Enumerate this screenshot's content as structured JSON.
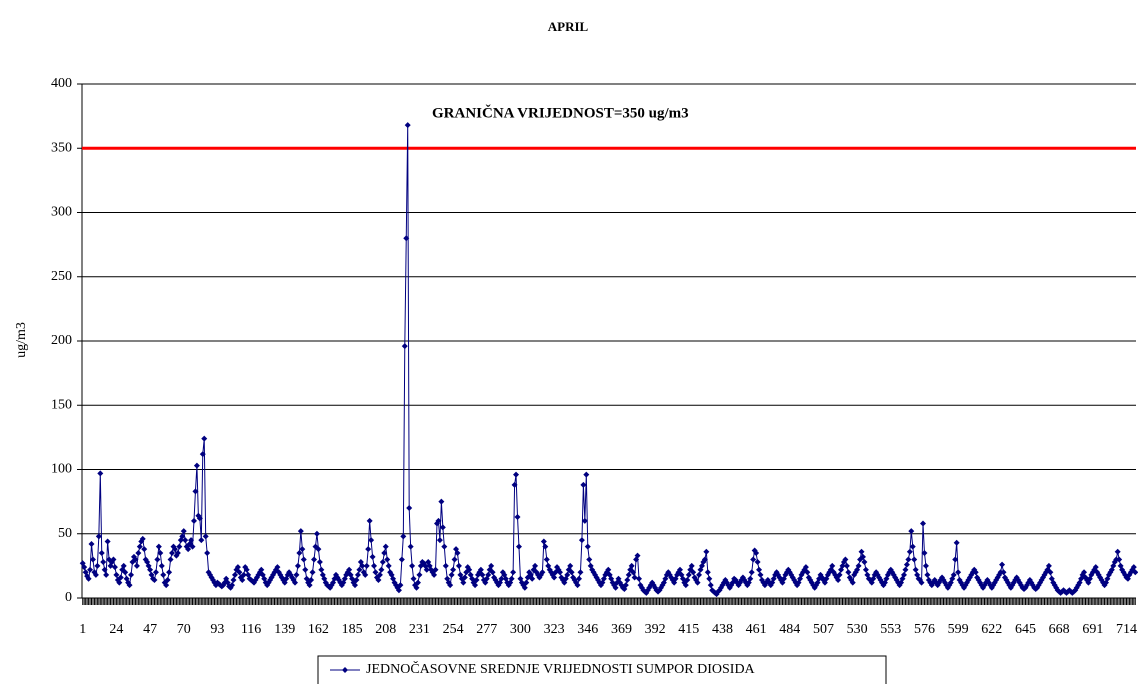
{
  "chart_data": {
    "type": "line",
    "title": "APRIL",
    "y_label": "ug/m3",
    "threshold": {
      "value": 350,
      "label": "GRANIČNA VRIJEDNOST=350 ug/m3",
      "color": "#ff0000"
    },
    "xlim": [
      0.5,
      720.5
    ],
    "xticks": [
      1,
      24,
      47,
      70,
      93,
      116,
      139,
      162,
      185,
      208,
      231,
      254,
      277,
      300,
      323,
      346,
      369,
      392,
      415,
      438,
      461,
      484,
      507,
      530,
      553,
      576,
      599,
      622,
      645,
      668,
      691,
      714
    ],
    "ylim": [
      0,
      400
    ],
    "yticks": [
      0,
      50,
      100,
      150,
      200,
      250,
      300,
      350,
      400
    ],
    "grid": true,
    "x": [
      1,
      2,
      3,
      4,
      5,
      6,
      7,
      8,
      9,
      10,
      11,
      12,
      13,
      14,
      15,
      16,
      17,
      18,
      19,
      20,
      21,
      22,
      23,
      24,
      25,
      26,
      27,
      28,
      29,
      30,
      31,
      32,
      33,
      34,
      35,
      36,
      37,
      38,
      39,
      40,
      41,
      42,
      43,
      44,
      45,
      46,
      47,
      48,
      49,
      50,
      51,
      52,
      53,
      54,
      55,
      56,
      57,
      58,
      59,
      60,
      61,
      62,
      63,
      64,
      65,
      66,
      67,
      68,
      69,
      70,
      71,
      72,
      73,
      74,
      75,
      76,
      77,
      78,
      79,
      80,
      81,
      82,
      83,
      84,
      85,
      86,
      87,
      88,
      89,
      90,
      91,
      92,
      93,
      94,
      95,
      96,
      97,
      98,
      99,
      100,
      101,
      102,
      103,
      104,
      105,
      106,
      107,
      108,
      109,
      110,
      111,
      112,
      113,
      114,
      115,
      116,
      117,
      118,
      119,
      120,
      121,
      122,
      123,
      124,
      125,
      126,
      127,
      128,
      129,
      130,
      131,
      132,
      133,
      134,
      135,
      136,
      137,
      138,
      139,
      140,
      141,
      142,
      143,
      144,
      145,
      146,
      147,
      148,
      149,
      150,
      151,
      152,
      153,
      154,
      155,
      156,
      157,
      158,
      159,
      160,
      161,
      162,
      163,
      164,
      165,
      166,
      167,
      168,
      169,
      170,
      171,
      172,
      173,
      174,
      175,
      176,
      177,
      178,
      179,
      180,
      181,
      182,
      183,
      184,
      185,
      186,
      187,
      188,
      189,
      190,
      191,
      192,
      193,
      194,
      195,
      196,
      197,
      198,
      199,
      200,
      201,
      202,
      203,
      204,
      205,
      206,
      207,
      208,
      209,
      210,
      211,
      212,
      213,
      214,
      215,
      216,
      217,
      218,
      219,
      220,
      221,
      222,
      223,
      224,
      225,
      226,
      227,
      228,
      229,
      230,
      231,
      232,
      233,
      234,
      235,
      236,
      237,
      238,
      239,
      240,
      241,
      242,
      243,
      244,
      245,
      246,
      247,
      248,
      249,
      250,
      251,
      252,
      253,
      254,
      255,
      256,
      257,
      258,
      259,
      260,
      261,
      262,
      263,
      264,
      265,
      266,
      267,
      268,
      269,
      270,
      271,
      272,
      273,
      274,
      275,
      276,
      277,
      278,
      279,
      280,
      281,
      282,
      283,
      284,
      285,
      286,
      287,
      288,
      289,
      290,
      291,
      292,
      293,
      294,
      295,
      296,
      297,
      298,
      299,
      300,
      301,
      302,
      303,
      304,
      305,
      306,
      307,
      308,
      309,
      310,
      311,
      312,
      313,
      314,
      315,
      316,
      317,
      318,
      319,
      320,
      321,
      322,
      323,
      324,
      325,
      326,
      327,
      328,
      329,
      330,
      331,
      332,
      333,
      334,
      335,
      336,
      337,
      338,
      339,
      340,
      341,
      342,
      343,
      344,
      345,
      346,
      347,
      348,
      349,
      350,
      351,
      352,
      353,
      354,
      355,
      356,
      357,
      358,
      359,
      360,
      361,
      362,
      363,
      364,
      365,
      366,
      367,
      368,
      369,
      370,
      371,
      372,
      373,
      374,
      375,
      376,
      377,
      378,
      379,
      380,
      381,
      382,
      383,
      384,
      385,
      386,
      387,
      388,
      389,
      390,
      391,
      392,
      393,
      394,
      395,
      396,
      397,
      398,
      399,
      400,
      401,
      402,
      403,
      404,
      405,
      406,
      407,
      408,
      409,
      410,
      411,
      412,
      413,
      414,
      415,
      416,
      417,
      418,
      419,
      420,
      421,
      422,
      423,
      424,
      425,
      426,
      427,
      428,
      429,
      430,
      431,
      432,
      433,
      434,
      435,
      436,
      437,
      438,
      439,
      440,
      441,
      442,
      443,
      444,
      445,
      446,
      447,
      448,
      449,
      450,
      451,
      452,
      453,
      454,
      455,
      456,
      457,
      458,
      459,
      460,
      461,
      462,
      463,
      464,
      465,
      466,
      467,
      468,
      469,
      470,
      471,
      472,
      473,
      474,
      475,
      476,
      477,
      478,
      479,
      480,
      481,
      482,
      483,
      484,
      485,
      486,
      487,
      488,
      489,
      490,
      491,
      492,
      493,
      494,
      495,
      496,
      497,
      498,
      499,
      500,
      501,
      502,
      503,
      504,
      505,
      506,
      507,
      508,
      509,
      510,
      511,
      512,
      513,
      514,
      515,
      516,
      517,
      518,
      519,
      520,
      521,
      522,
      523,
      524,
      525,
      526,
      527,
      528,
      529,
      530,
      531,
      532,
      533,
      534,
      535,
      536,
      537,
      538,
      539,
      540,
      541,
      542,
      543,
      544,
      545,
      546,
      547,
      548,
      549,
      550,
      551,
      552,
      553,
      554,
      555,
      556,
      557,
      558,
      559,
      560,
      561,
      562,
      563,
      564,
      565,
      566,
      567,
      568,
      569,
      570,
      571,
      572,
      573,
      574,
      575,
      576,
      577,
      578,
      579,
      580,
      581,
      582,
      583,
      584,
      585,
      586,
      587,
      588,
      589,
      590,
      591,
      592,
      593,
      594,
      595,
      596,
      597,
      598,
      599,
      600,
      601,
      602,
      603,
      604,
      605,
      606,
      607,
      608,
      609,
      610,
      611,
      612,
      613,
      614,
      615,
      616,
      617,
      618,
      619,
      620,
      621,
      622,
      623,
      624,
      625,
      626,
      627,
      628,
      629,
      630,
      631,
      632,
      633,
      634,
      635,
      636,
      637,
      638,
      639,
      640,
      641,
      642,
      643,
      644,
      645,
      646,
      647,
      648,
      649,
      650,
      651,
      652,
      653,
      654,
      655,
      656,
      657,
      658,
      659,
      660,
      661,
      662,
      663,
      664,
      665,
      666,
      667,
      668,
      669,
      670,
      671,
      672,
      673,
      674,
      675,
      676,
      677,
      678,
      679,
      680,
      681,
      682,
      683,
      684,
      685,
      686,
      687,
      688,
      689,
      690,
      691,
      692,
      693,
      694,
      695,
      696,
      697,
      698,
      699,
      700,
      701,
      702,
      703,
      704,
      705,
      706,
      707,
      708,
      709,
      710,
      711,
      712,
      713,
      714,
      715,
      716,
      717,
      718,
      719,
      720
    ],
    "series": [
      {
        "name": "JEDNOČASOVNE SREDNJE VRIJEDNOSTI SUMPOR DIOSIDA",
        "color": "#000080",
        "values": [
          27,
          24,
          20,
          17,
          15,
          22,
          42,
          30,
          20,
          18,
          25,
          48,
          97,
          35,
          28,
          22,
          18,
          44,
          30,
          25,
          28,
          30,
          24,
          18,
          14,
          12,
          16,
          22,
          25,
          20,
          15,
          12,
          10,
          18,
          28,
          32,
          30,
          25,
          35,
          40,
          44,
          46,
          38,
          30,
          28,
          25,
          22,
          18,
          15,
          14,
          20,
          30,
          40,
          35,
          25,
          18,
          12,
          10,
          14,
          20,
          30,
          35,
          40,
          38,
          33,
          35,
          40,
          45,
          48,
          52,
          45,
          40,
          38,
          42,
          45,
          40,
          60,
          83,
          103,
          64,
          62,
          45,
          112,
          124,
          48,
          35,
          20,
          18,
          16,
          14,
          12,
          10,
          12,
          11,
          10,
          9,
          10,
          12,
          15,
          12,
          9,
          8,
          10,
          14,
          18,
          22,
          24,
          20,
          16,
          14,
          18,
          24,
          22,
          18,
          15,
          14,
          13,
          12,
          14,
          16,
          18,
          20,
          22,
          18,
          15,
          12,
          10,
          12,
          14,
          16,
          18,
          20,
          22,
          24,
          20,
          18,
          16,
          14,
          12,
          15,
          18,
          20,
          18,
          16,
          14,
          12,
          18,
          25,
          35,
          52,
          38,
          30,
          22,
          15,
          12,
          10,
          14,
          20,
          30,
          40,
          50,
          38,
          28,
          22,
          18,
          15,
          12,
          10,
          9,
          8,
          10,
          12,
          15,
          18,
          16,
          14,
          12,
          10,
          12,
          15,
          18,
          20,
          22,
          18,
          15,
          12,
          10,
          14,
          18,
          22,
          28,
          25,
          20,
          18,
          25,
          38,
          60,
          45,
          32,
          25,
          20,
          16,
          14,
          18,
          22,
          28,
          35,
          40,
          30,
          25,
          20,
          18,
          15,
          12,
          10,
          8,
          6,
          10,
          30,
          48,
          196,
          280,
          368,
          70,
          40,
          25,
          15,
          10,
          8,
          12,
          18,
          25,
          28,
          27,
          25,
          22,
          28,
          25,
          22,
          20,
          18,
          22,
          58,
          60,
          45,
          75,
          55,
          40,
          25,
          15,
          12,
          10,
          18,
          22,
          30,
          38,
          35,
          25,
          18,
          15,
          12,
          16,
          20,
          24,
          22,
          18,
          15,
          12,
          10,
          14,
          18,
          20,
          22,
          18,
          14,
          12,
          15,
          18,
          22,
          25,
          20,
          16,
          14,
          12,
          10,
          12,
          15,
          20,
          18,
          15,
          12,
          10,
          12,
          15,
          20,
          88,
          96,
          63,
          40,
          15,
          12,
          10,
          8,
          12,
          16,
          20,
          18,
          15,
          22,
          25,
          20,
          18,
          16,
          18,
          20,
          44,
          40,
          30,
          25,
          22,
          20,
          18,
          16,
          20,
          24,
          22,
          20,
          16,
          14,
          12,
          15,
          18,
          22,
          25,
          20,
          16,
          14,
          12,
          10,
          15,
          20,
          45,
          88,
          60,
          96,
          40,
          30,
          25,
          22,
          20,
          18,
          16,
          14,
          12,
          10,
          12,
          15,
          18,
          20,
          22,
          18,
          15,
          12,
          10,
          8,
          12,
          15,
          12,
          10,
          8,
          7,
          10,
          14,
          18,
          22,
          25,
          20,
          16,
          30,
          33,
          15,
          10,
          8,
          6,
          5,
          4,
          6,
          8,
          10,
          12,
          10,
          8,
          6,
          5,
          6,
          8,
          10,
          12,
          15,
          18,
          20,
          18,
          16,
          14,
          12,
          15,
          18,
          20,
          22,
          18,
          15,
          12,
          10,
          14,
          18,
          22,
          25,
          20,
          16,
          14,
          12,
          18,
          22,
          25,
          28,
          30,
          36,
          20,
          15,
          10,
          6,
          5,
          4,
          3,
          5,
          6,
          8,
          10,
          12,
          14,
          12,
          10,
          8,
          10,
          12,
          15,
          14,
          12,
          10,
          12,
          14,
          16,
          14,
          12,
          10,
          12,
          15,
          20,
          30,
          37,
          35,
          28,
          22,
          18,
          14,
          12,
          10,
          12,
          14,
          12,
          10,
          12,
          15,
          18,
          20,
          18,
          16,
          14,
          12,
          15,
          18,
          20,
          22,
          20,
          18,
          16,
          14,
          12,
          10,
          12,
          15,
          18,
          20,
          22,
          24,
          20,
          16,
          14,
          12,
          10,
          8,
          10,
          12,
          15,
          18,
          16,
          14,
          12,
          15,
          18,
          20,
          22,
          25,
          20,
          18,
          16,
          14,
          18,
          22,
          25,
          28,
          30,
          25,
          20,
          16,
          14,
          12,
          18,
          20,
          22,
          25,
          30,
          36,
          32,
          28,
          22,
          18,
          15,
          14,
          12,
          15,
          18,
          20,
          18,
          16,
          14,
          12,
          10,
          12,
          15,
          18,
          20,
          22,
          20,
          18,
          16,
          14,
          12,
          10,
          12,
          15,
          18,
          22,
          26,
          30,
          36,
          52,
          40,
          30,
          22,
          18,
          15,
          14,
          12,
          58,
          35,
          25,
          18,
          14,
          12,
          10,
          12,
          14,
          12,
          10,
          12,
          14,
          16,
          14,
          12,
          10,
          8,
          10,
          12,
          15,
          18,
          30,
          43,
          20,
          14,
          12,
          10,
          8,
          10,
          12,
          14,
          16,
          18,
          20,
          22,
          20,
          16,
          14,
          12,
          10,
          8,
          10,
          12,
          14,
          12,
          10,
          8,
          10,
          12,
          14,
          16,
          18,
          20,
          26,
          20,
          16,
          14,
          12,
          10,
          8,
          10,
          12,
          14,
          16,
          14,
          12,
          10,
          8,
          7,
          8,
          10,
          12,
          14,
          12,
          10,
          8,
          7,
          8,
          10,
          12,
          14,
          16,
          18,
          20,
          22,
          25,
          20,
          15,
          12,
          10,
          8,
          6,
          5,
          4,
          5,
          6,
          5,
          4,
          5,
          6,
          5,
          4,
          5,
          6,
          8,
          10,
          12,
          15,
          18,
          20,
          16,
          14,
          12,
          15,
          18,
          20,
          22,
          24,
          20,
          18,
          16,
          14,
          12,
          10,
          12,
          15,
          18,
          20,
          22,
          25,
          28,
          30,
          36,
          30,
          25,
          22,
          20,
          18,
          16,
          15,
          18,
          20,
          22,
          24,
          20
        ]
      }
    ]
  }
}
